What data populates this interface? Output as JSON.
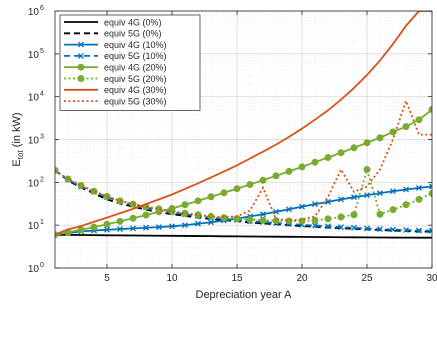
{
  "chart_data": {
    "type": "line",
    "xlabel": "Depreciation year A",
    "ylabel": "E",
    "ylabel_sub": "tot",
    "ylabel_unit": " (in kW)",
    "xlim": [
      1,
      30
    ],
    "ylim": [
      1,
      1000000
    ],
    "yscale": "log",
    "grid": true,
    "legend_position": "top-left",
    "x_ticks": [
      5,
      10,
      15,
      20,
      25,
      30
    ],
    "y_ticks": [
      {
        "value": 1,
        "base": "10",
        "exp": "0"
      },
      {
        "value": 10,
        "base": "10",
        "exp": "1"
      },
      {
        "value": 100,
        "base": "10",
        "exp": "2"
      },
      {
        "value": 1000,
        "base": "10",
        "exp": "3"
      },
      {
        "value": 10000,
        "base": "10",
        "exp": "4"
      },
      {
        "value": 100000,
        "base": "10",
        "exp": "5"
      },
      {
        "value": 1000000,
        "base": "10",
        "exp": "6"
      }
    ],
    "x": [
      1,
      2,
      3,
      4,
      5,
      6,
      7,
      8,
      9,
      10,
      11,
      12,
      13,
      14,
      15,
      16,
      17,
      18,
      19,
      20,
      21,
      22,
      23,
      24,
      25,
      26,
      27,
      28,
      29,
      30
    ],
    "series": [
      {
        "name": "equiv 4G (0%)",
        "color": "#000000",
        "dash": "solid",
        "marker": "none",
        "values": [
          6,
          5.95,
          5.9,
          5.85,
          5.8,
          5.77,
          5.74,
          5.7,
          5.67,
          5.64,
          5.6,
          5.57,
          5.54,
          5.5,
          5.47,
          5.44,
          5.41,
          5.38,
          5.35,
          5.32,
          5.29,
          5.26,
          5.23,
          5.2,
          5.18,
          5.16,
          5.14,
          5.12,
          5.1,
          5.1
        ]
      },
      {
        "name": "equiv 5G (0%)",
        "color": "#000000",
        "dash": "dashed",
        "marker": "none",
        "values": [
          190,
          110,
          75,
          55,
          40,
          32,
          27,
          23,
          20,
          18,
          16.5,
          15,
          14,
          13,
          12.5,
          11.5,
          11,
          10.5,
          10,
          9.5,
          9.2,
          8.8,
          8.5,
          8.2,
          8,
          7.7,
          7.5,
          7.3,
          7.1,
          7
        ]
      },
      {
        "name": "equiv 4G (10%)",
        "color": "#0072BD",
        "dash": "solid",
        "marker": "x",
        "values": [
          6,
          6.6,
          7.1,
          7.5,
          7.8,
          8.1,
          8.4,
          8.7,
          9.0,
          9.4,
          10.0,
          10.8,
          11.7,
          12.8,
          14.2,
          16.0,
          18.0,
          20.5,
          23.5,
          27,
          31,
          35,
          40,
          45,
          50,
          56,
          62,
          68,
          74,
          80
        ]
      },
      {
        "name": "equiv 5G (10%)",
        "color": "#0072BD",
        "dash": "dashed",
        "marker": "x",
        "values": [
          190,
          115,
          80,
          60,
          45,
          36,
          30,
          26,
          22,
          20,
          18,
          16.5,
          15,
          14,
          13.2,
          12.4,
          11.8,
          11.2,
          10.7,
          10.2,
          9.8,
          9.4,
          9.0,
          8.7,
          8.4,
          8.1,
          7.9,
          7.7,
          7.5,
          7.4
        ]
      },
      {
        "name": "equiv 4G (20%)",
        "color": "#77AC30",
        "dash": "solid",
        "marker": "o",
        "values": [
          6,
          6.8,
          7.8,
          9.0,
          10.5,
          12.3,
          14.5,
          17.2,
          20.5,
          24.5,
          30,
          37,
          46,
          57,
          71,
          89,
          112,
          142,
          180,
          230,
          295,
          380,
          490,
          640,
          840,
          1100,
          1500,
          2000,
          2900,
          5000
        ]
      },
      {
        "name": "equiv 5G (20%)",
        "color": "#77AC30",
        "dash": "dotted",
        "marker": "o",
        "values": [
          190,
          120,
          85,
          62,
          47,
          37,
          31,
          27,
          24,
          21,
          19,
          17.5,
          16,
          15,
          14.2,
          13.5,
          13,
          12.7,
          12.5,
          12.5,
          13,
          14,
          15.5,
          17.5,
          200,
          18,
          23,
          30,
          40,
          55
        ]
      },
      {
        "name": "equiv 4G (30%)",
        "color": "#D95319",
        "dash": "solid",
        "marker": "none",
        "values": [
          6,
          8,
          9.5,
          12,
          15,
          19,
          24,
          31,
          40,
          52,
          70,
          95,
          130,
          180,
          250,
          360,
          520,
          760,
          1150,
          1800,
          2900,
          4800,
          8500,
          16000,
          32000,
          70000,
          170000,
          450000,
          1000000,
          1000000
        ]
      },
      {
        "name": "equiv 5G (30%)",
        "color": "#D95319",
        "dash": "dotted",
        "marker": "none",
        "values": [
          190,
          120,
          85,
          62,
          47,
          37,
          31,
          27,
          24,
          21,
          19,
          17,
          16,
          15.5,
          16,
          22,
          75,
          14,
          13,
          13.5,
          16,
          45,
          200,
          60,
          80,
          200,
          1000,
          8000,
          1300,
          1300
        ]
      }
    ]
  }
}
